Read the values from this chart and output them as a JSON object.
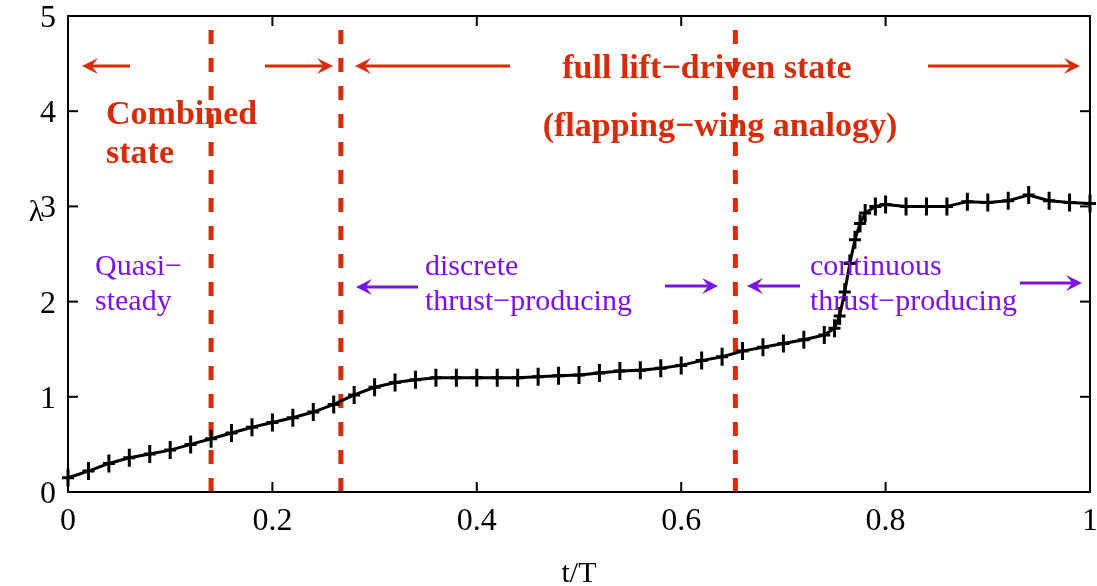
{
  "chart_data": {
    "type": "line",
    "xlabel": "t/T",
    "ylabel": "λ",
    "xlim": [
      0,
      1
    ],
    "ylim": [
      0,
      5
    ],
    "xticks": [
      0,
      0.2,
      0.4,
      0.6,
      0.8,
      1
    ],
    "yticks": [
      0,
      1,
      2,
      3,
      4,
      5
    ],
    "grid": false,
    "marker": "cross",
    "line_style": "solid",
    "series": [
      {
        "color": "#000000",
        "x": [
          0,
          0.02,
          0.04,
          0.06,
          0.08,
          0.1,
          0.12,
          0.14,
          0.16,
          0.18,
          0.2,
          0.22,
          0.24,
          0.26,
          0.28,
          0.3,
          0.32,
          0.34,
          0.36,
          0.38,
          0.4,
          0.42,
          0.44,
          0.46,
          0.48,
          0.5,
          0.52,
          0.54,
          0.56,
          0.58,
          0.6,
          0.62,
          0.64,
          0.66,
          0.68,
          0.7,
          0.72,
          0.74,
          0.75,
          0.755,
          0.76,
          0.765,
          0.77,
          0.775,
          0.78,
          0.79,
          0.8,
          0.82,
          0.84,
          0.86,
          0.88,
          0.9,
          0.92,
          0.94,
          0.96,
          0.98,
          1
        ],
        "values": [
          0.15,
          0.22,
          0.3,
          0.36,
          0.4,
          0.44,
          0.5,
          0.56,
          0.62,
          0.68,
          0.73,
          0.78,
          0.84,
          0.92,
          1.02,
          1.1,
          1.15,
          1.18,
          1.2,
          1.2,
          1.2,
          1.2,
          1.2,
          1.21,
          1.22,
          1.23,
          1.25,
          1.27,
          1.28,
          1.3,
          1.33,
          1.38,
          1.42,
          1.48,
          1.52,
          1.56,
          1.6,
          1.65,
          1.72,
          1.85,
          2.1,
          2.4,
          2.65,
          2.82,
          2.93,
          3.0,
          3.02,
          3.0,
          3.0,
          3.0,
          3.05,
          3.04,
          3.06,
          3.12,
          3.06,
          3.04,
          3.03
        ]
      }
    ],
    "ref_lines": [
      {
        "axis": "x",
        "value": 0.14,
        "color": "#d62c0a",
        "line_style": "dashed"
      },
      {
        "axis": "x",
        "value": 0.267,
        "color": "#d62c0a",
        "line_style": "dashed"
      },
      {
        "axis": "x",
        "value": 0.653,
        "color": "#d62c0a",
        "line_style": "dashed"
      }
    ],
    "annotations": [
      "Combined state",
      "full lift−driven state",
      "(flapping−wing analogy)",
      "Quasi−steady",
      "discrete thrust−producing",
      "continuous thrust−producing"
    ]
  }
}
